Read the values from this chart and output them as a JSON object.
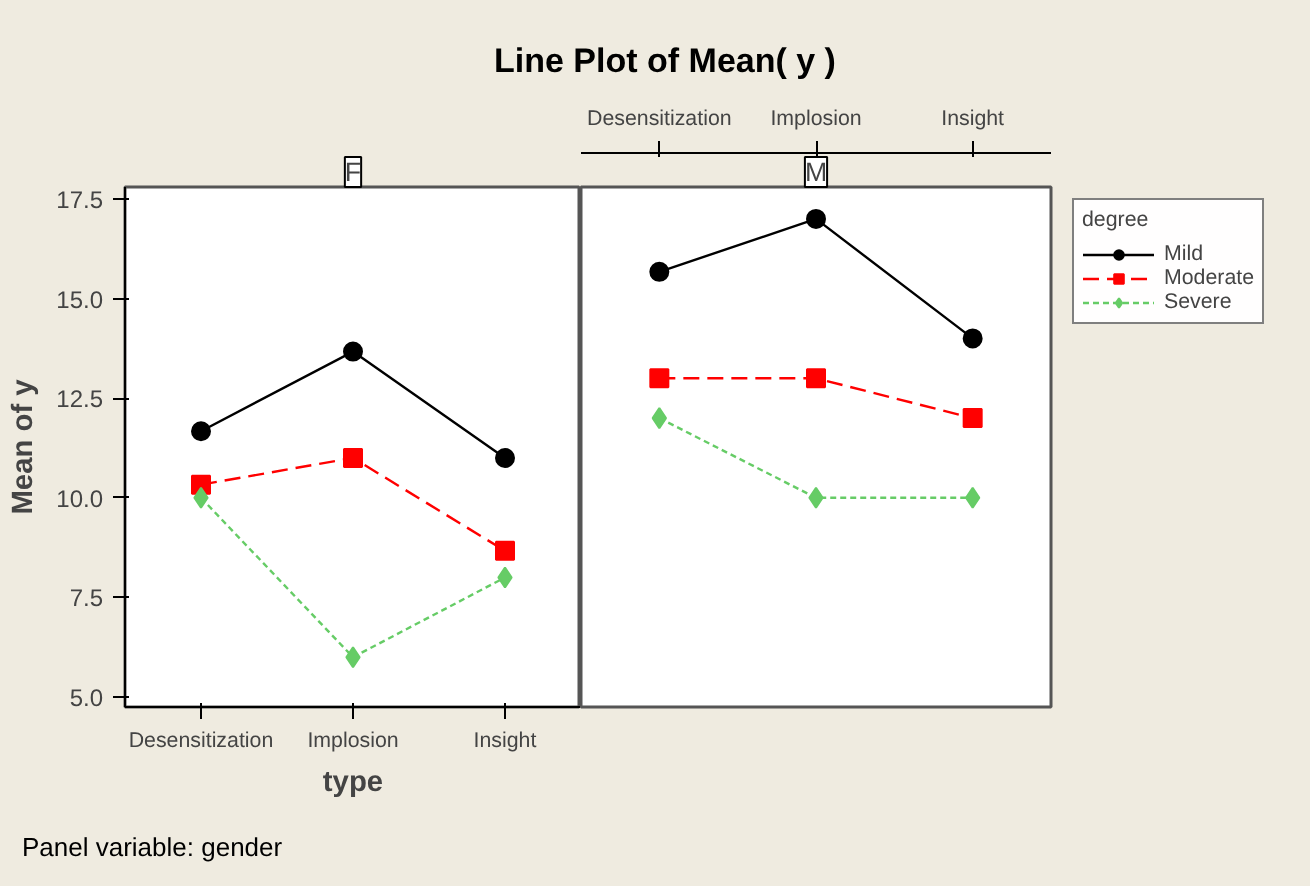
{
  "chart_data": [
    {
      "type": "line",
      "title": "Line Plot of Mean( y )",
      "subtitle": "F",
      "xlabel": "type",
      "ylabel": "Mean of y",
      "categories": [
        "Desensitization",
        "Implosion",
        "Insight"
      ],
      "ylim": [
        4.75,
        17.8
      ],
      "yticks": [
        {
          "value": 5,
          "label": "5.0"
        },
        {
          "value": 7.5,
          "label": "7.5"
        },
        {
          "value": 10,
          "label": "10.0"
        },
        {
          "value": 12.5,
          "label": "12.5"
        },
        {
          "value": 15,
          "label": "15.0"
        },
        {
          "value": 17.5,
          "label": "17.5"
        }
      ],
      "grid": false,
      "legend": false,
      "annotations": [
        "Panel variable: gender"
      ],
      "series": [
        {
          "color": "#000000",
          "marker": "circle",
          "line_style": "solid",
          "values": [
            11.67,
            13.67,
            11
          ]
        },
        {
          "color": "#ff0000",
          "marker": "square",
          "line_style": "dashed",
          "values": [
            10.33,
            11,
            8.67
          ]
        },
        {
          "color": "#66cc66",
          "marker": "diamond",
          "line_style": "dotted",
          "values": [
            10,
            6,
            8
          ]
        }
      ]
    },
    {
      "type": "line",
      "subtitle": "M",
      "categories": [
        "Desensitization",
        "Implosion",
        "Insight"
      ],
      "ylim": [
        4.75,
        17.8
      ],
      "grid": false,
      "legend": "right",
      "legend_title": "degree",
      "tick_labels": "x",
      "series": [
        {
          "name": "Mild",
          "color": "#000000",
          "marker": "circle",
          "line_style": "solid",
          "values": [
            15.67,
            17,
            14
          ]
        },
        {
          "name": "Moderate",
          "color": "#ff0000",
          "marker": "square",
          "line_style": "dashed",
          "values": [
            13,
            13,
            12
          ]
        },
        {
          "name": "Severe",
          "color": "#66cc66",
          "marker": "diamond",
          "line_style": "dotted",
          "values": [
            12,
            10,
            10
          ]
        }
      ]
    }
  ]
}
